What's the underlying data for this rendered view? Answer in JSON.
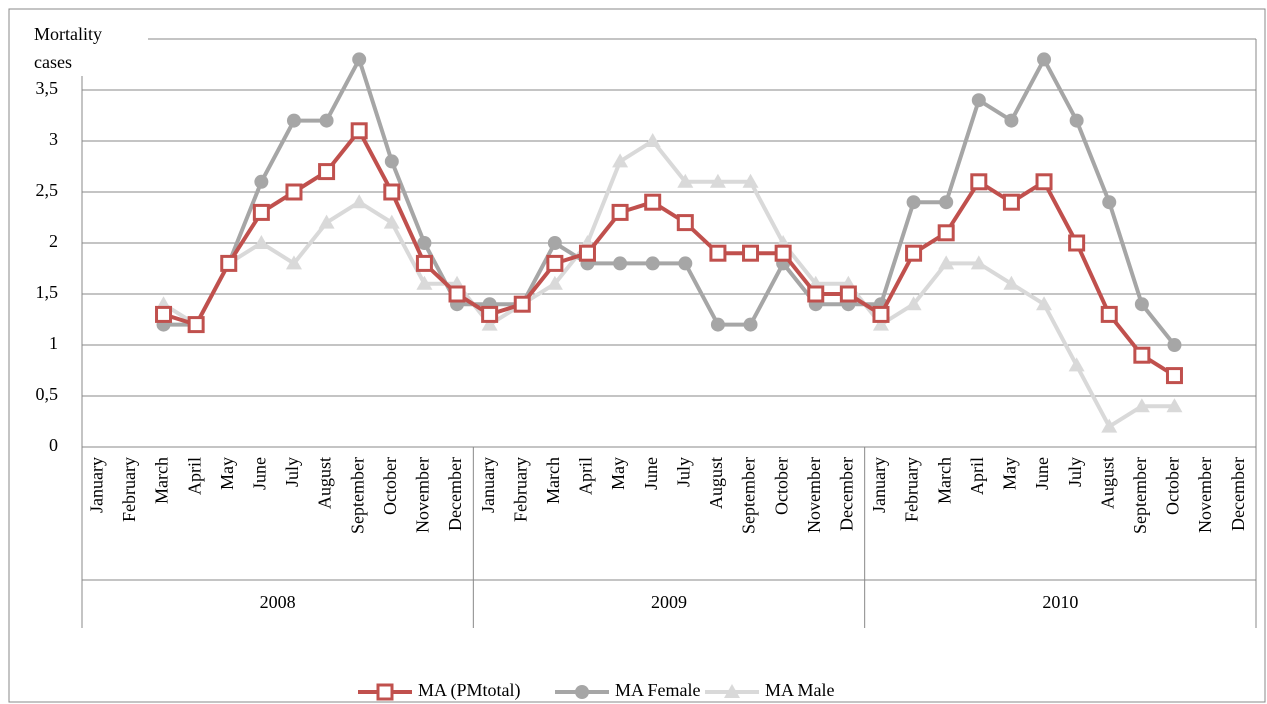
{
  "chart_data": {
    "type": "line",
    "y_label": "Mortality cases",
    "category_groups": [
      {
        "name": "2008",
        "categories": [
          "January",
          "February",
          "March",
          "April",
          "May",
          "June",
          "July",
          "August",
          "September",
          "October",
          "November",
          "December"
        ]
      },
      {
        "name": "2009",
        "categories": [
          "January",
          "February",
          "March",
          "April",
          "May",
          "June",
          "July",
          "August",
          "September",
          "October",
          "November",
          "December"
        ]
      },
      {
        "name": "2010",
        "categories": [
          "January",
          "February",
          "March",
          "April",
          "May",
          "June",
          "July",
          "August",
          "September",
          "October",
          "November",
          "December"
        ]
      }
    ],
    "series": [
      {
        "name": "MA Female",
        "color": "#a6a6a6",
        "marker": "circle",
        "values": [
          null,
          null,
          1.2,
          1.2,
          1.8,
          2.6,
          3.2,
          3.2,
          3.8,
          2.8,
          2.0,
          1.4,
          1.4,
          1.4,
          2.0,
          1.8,
          1.8,
          1.8,
          1.8,
          1.2,
          1.2,
          1.8,
          1.4,
          1.4,
          1.4,
          2.4,
          2.4,
          3.4,
          3.2,
          3.8,
          3.2,
          2.4,
          1.4,
          1.0,
          null,
          null
        ]
      },
      {
        "name": "MA Male",
        "color": "#d9d9d9",
        "marker": "triangle",
        "values": [
          null,
          null,
          1.4,
          1.2,
          1.8,
          2.0,
          1.8,
          2.2,
          2.4,
          2.2,
          1.6,
          1.6,
          1.2,
          1.4,
          1.6,
          2.0,
          2.8,
          3.0,
          2.6,
          2.6,
          2.6,
          2.0,
          1.6,
          1.6,
          1.2,
          1.4,
          1.8,
          1.8,
          1.6,
          1.4,
          0.8,
          0.2,
          0.4,
          0.4,
          null,
          null
        ]
      },
      {
        "name": "MA (PMtotal)",
        "color": "#c0504d",
        "marker": "square",
        "values": [
          null,
          null,
          1.3,
          1.2,
          1.8,
          2.3,
          2.5,
          2.7,
          3.1,
          2.5,
          1.8,
          1.5,
          1.3,
          1.4,
          1.8,
          1.9,
          2.3,
          2.4,
          2.2,
          1.9,
          1.9,
          1.9,
          1.5,
          1.5,
          1.3,
          1.9,
          2.1,
          2.6,
          2.4,
          2.6,
          2.0,
          1.3,
          0.9,
          0.7,
          null,
          null
        ]
      }
    ],
    "legend_order": [
      "MA (PMtotal)",
      "MA Female",
      "MA Male"
    ],
    "ylim": [
      0,
      4
    ],
    "yticks": [
      0,
      {
        "value": 0.5,
        "label": "0,5"
      },
      1,
      {
        "value": 1.5,
        "label": "1,5"
      },
      2,
      {
        "value": 2.5,
        "label": "2,5"
      },
      3,
      {
        "value": 3.5,
        "label": "3,5"
      }
    ],
    "grid": true,
    "legend": "bottom"
  }
}
